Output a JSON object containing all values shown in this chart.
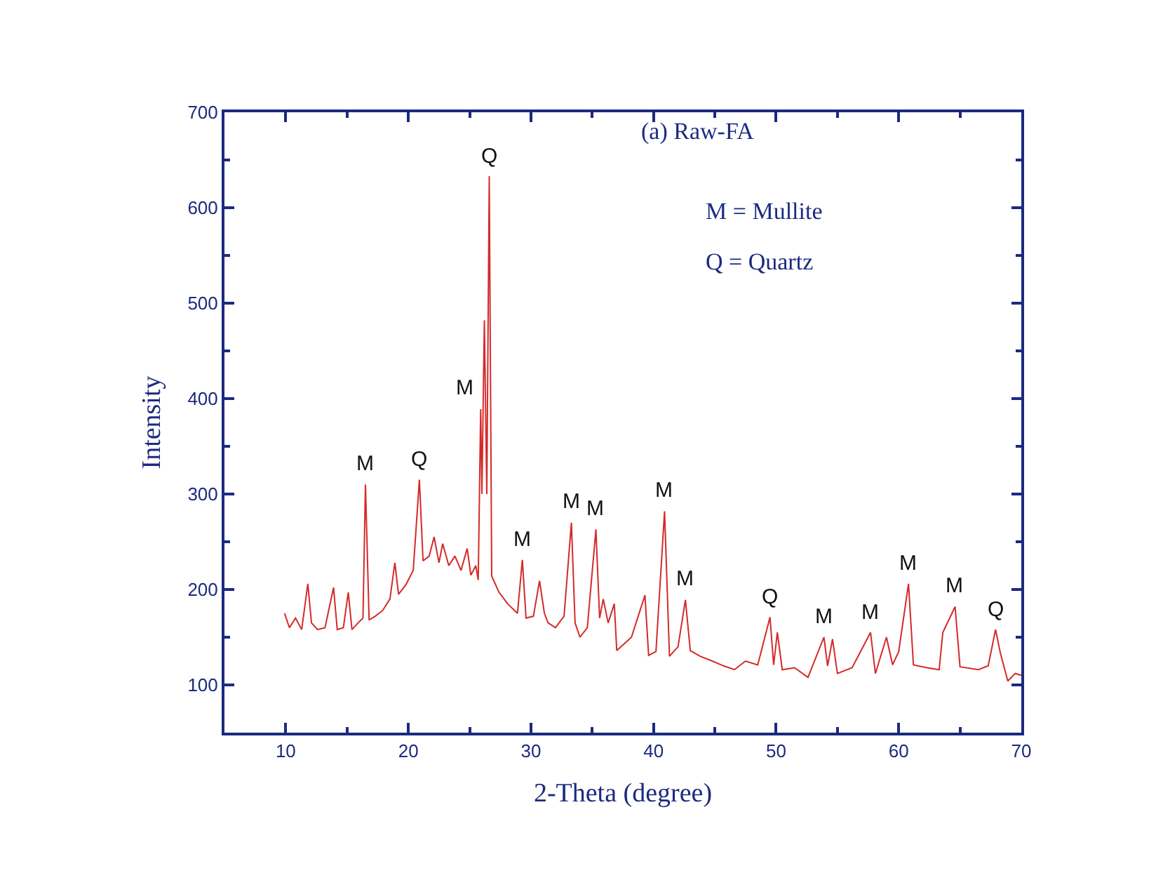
{
  "chart_data": {
    "type": "line",
    "xlabel": "2-Theta (degree)",
    "ylabel": "Intensity",
    "annotations": [
      "(a) Raw-FA",
      "M = Mullite",
      "Q = Quartz",
      {
        "text": "M",
        "x": 16.5,
        "y": 310
      },
      {
        "text": "Q",
        "x": 20.9,
        "y": 315
      },
      {
        "text": "M",
        "x": 25.9,
        "y": 389
      },
      {
        "text": "Q",
        "x": 26.6,
        "y": 633
      },
      {
        "text": "M",
        "x": 29.3,
        "y": 231
      },
      {
        "text": "M",
        "x": 33.3,
        "y": 270
      },
      {
        "text": "M",
        "x": 35.3,
        "y": 263
      },
      {
        "text": "M",
        "x": 40.9,
        "y": 282
      },
      {
        "text": "M",
        "x": 42.6,
        "y": 189
      },
      {
        "text": "Q",
        "x": 49.5,
        "y": 171
      },
      {
        "text": "M",
        "x": 53.9,
        "y": 150
      },
      {
        "text": "M",
        "x": 57.7,
        "y": 155
      },
      {
        "text": "M",
        "x": 60.8,
        "y": 206
      },
      {
        "text": "M",
        "x": 64.6,
        "y": 182
      },
      {
        "text": "Q",
        "x": 67.9,
        "y": 158
      }
    ],
    "series": [
      {
        "color": "#d42a2a",
        "x": [
          9.9,
          10.3,
          10.8,
          11.3,
          11.8,
          12.1,
          12.6,
          13.2,
          13.9,
          14.2,
          14.7,
          15.1,
          15.4,
          15.9,
          16.3,
          16.5,
          16.8,
          17.3,
          17.9,
          18.5,
          18.9,
          19.2,
          19.8,
          20.4,
          20.9,
          21.2,
          21.7,
          22.1,
          22.5,
          22.8,
          23.3,
          23.8,
          24.3,
          24.8,
          25.1,
          25.5,
          25.7,
          25.9,
          26.0,
          26.2,
          26.4,
          26.6,
          26.8,
          27.4,
          28.1,
          28.9,
          29.3,
          29.6,
          30.2,
          30.7,
          31.1,
          31.4,
          32.0,
          32.7,
          33.3,
          33.6,
          34.0,
          34.6,
          35.3,
          35.6,
          35.9,
          36.3,
          36.8,
          37.0,
          38.2,
          39.3,
          39.6,
          40.2,
          40.9,
          41.3,
          42.0,
          42.6,
          43.0,
          43.8,
          44.8,
          45.7,
          46.6,
          47.5,
          48.5,
          49.5,
          49.8,
          50.1,
          50.5,
          51.5,
          52.6,
          53.9,
          54.2,
          54.6,
          55.0,
          56.2,
          57.7,
          58.1,
          59.0,
          59.5,
          60.0,
          60.8,
          61.2,
          62.3,
          63.3,
          63.6,
          64.6,
          65.0,
          66.5,
          67.3,
          67.9,
          68.3,
          68.9,
          69.5,
          70.0
        ],
        "values": [
          175,
          160,
          170,
          158,
          206,
          165,
          158,
          160,
          202,
          158,
          160,
          197,
          158,
          165,
          170,
          310,
          168,
          172,
          178,
          190,
          228,
          195,
          205,
          220,
          315,
          230,
          235,
          255,
          228,
          248,
          225,
          235,
          220,
          243,
          215,
          225,
          210,
          389,
          300,
          482,
          300,
          633,
          214,
          197,
          185,
          175,
          231,
          170,
          172,
          209,
          175,
          165,
          160,
          172,
          270,
          165,
          150,
          160,
          263,
          170,
          190,
          165,
          185,
          136,
          150,
          194,
          131,
          135,
          282,
          130,
          140,
          189,
          136,
          130,
          125,
          120,
          116,
          125,
          121,
          171,
          121,
          155,
          116,
          118,
          108,
          150,
          120,
          148,
          112,
          118,
          155,
          112,
          150,
          121,
          135,
          206,
          121,
          118,
          116,
          155,
          182,
          119,
          116,
          120,
          158,
          133,
          104,
          112,
          110
        ]
      }
    ],
    "xlim": [
      5,
      70
    ],
    "xticks": [
      10,
      20,
      30,
      40,
      50,
      60,
      70
    ],
    "ylim": [
      50,
      700
    ],
    "yticks": [
      100,
      200,
      300,
      400,
      500,
      600,
      700
    ],
    "marker": "none",
    "line_style": "solid"
  }
}
